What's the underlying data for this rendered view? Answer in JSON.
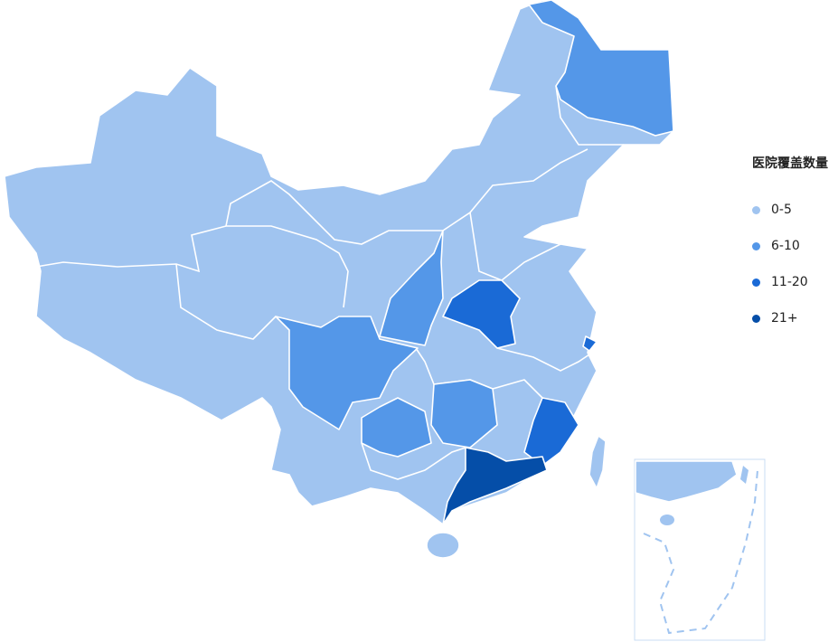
{
  "legend": {
    "title": "医院覆盖数量",
    "items": [
      {
        "label": "0-5",
        "color": "#a0c4f0"
      },
      {
        "label": "6-10",
        "color": "#5497e8"
      },
      {
        "label": "11-20",
        "color": "#1a6ad6"
      },
      {
        "label": "21+",
        "color": "#054ea8"
      }
    ]
  },
  "regions": [
    {
      "id": "heilongjiang",
      "level": 1
    },
    {
      "id": "shaanxi",
      "level": 1
    },
    {
      "id": "sichuan",
      "level": 1
    },
    {
      "id": "guizhou",
      "level": 1
    },
    {
      "id": "hunan",
      "level": 1
    },
    {
      "id": "henan",
      "level": 2
    },
    {
      "id": "shanghai",
      "level": 2
    },
    {
      "id": "fujian",
      "level": 2
    },
    {
      "id": "guangdong",
      "level": 3
    }
  ],
  "default_level": 0
}
